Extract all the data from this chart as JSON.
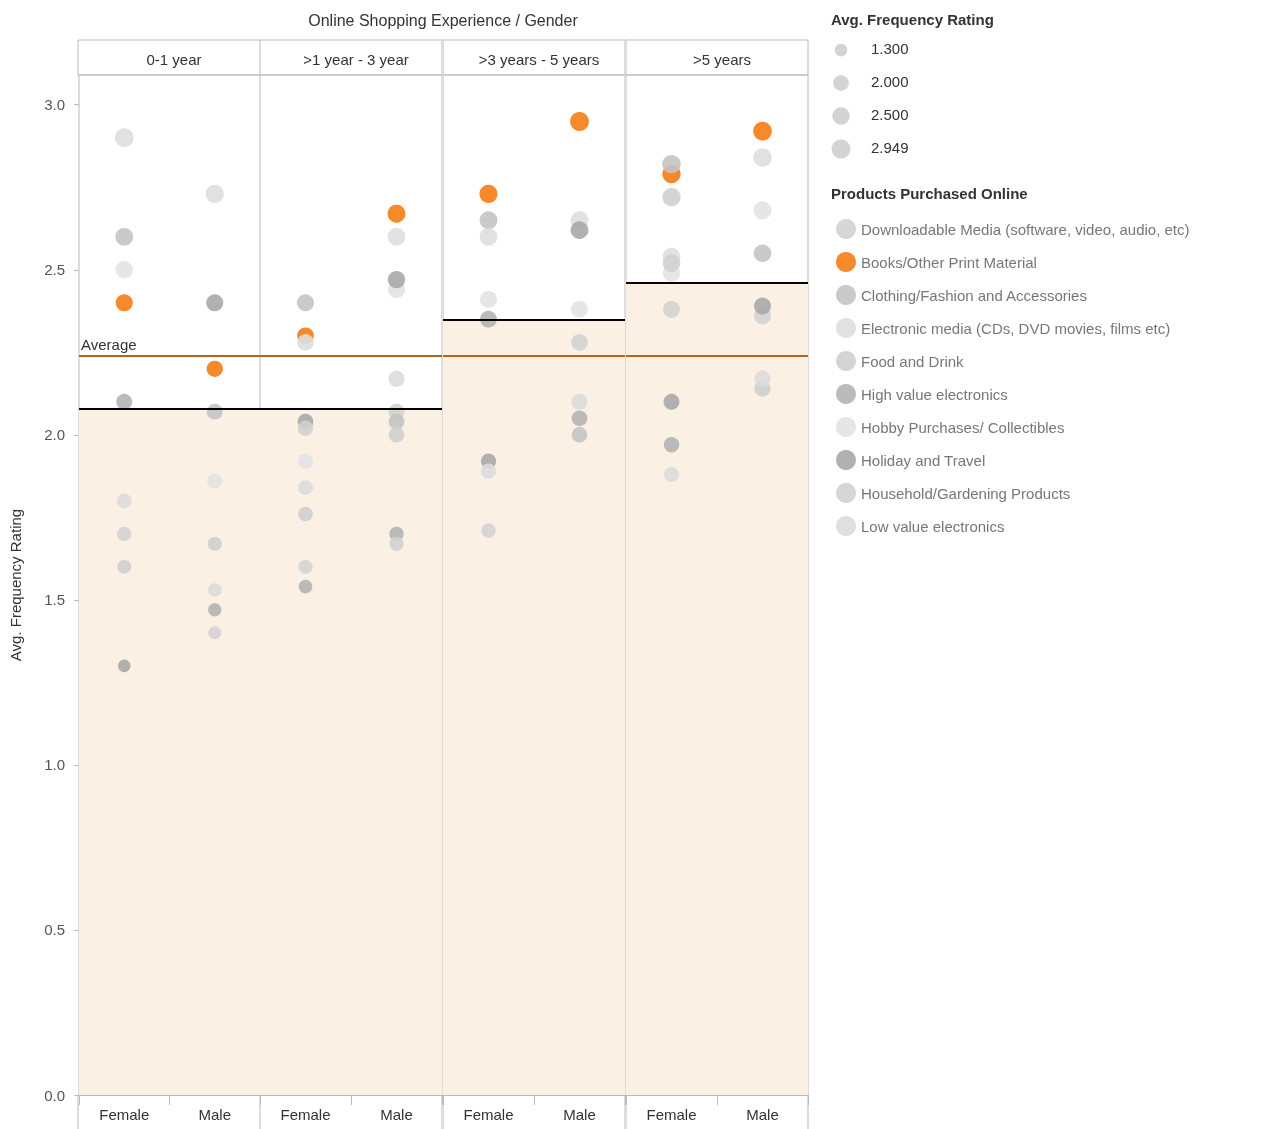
{
  "chart_data": [
    {
      "type": "other",
      "title": "Online Shopping Experience / Gender"
    },
    {
      "type": "scatter",
      "subtitle": "0-1 year",
      "ylabel": "Avg. Frequency Rating",
      "categories": [
        "Female",
        "Male"
      ],
      "ylim": [
        0,
        3.09
      ],
      "yticks": [
        {
          "value": 0,
          "label": "0.0"
        },
        {
          "value": 0.5,
          "label": "0.5"
        },
        {
          "value": 1,
          "label": "1.0"
        },
        {
          "value": 1.5,
          "label": "1.5"
        },
        {
          "value": 2,
          "label": "2.0"
        },
        {
          "value": 2.5,
          "label": "2.5"
        },
        {
          "value": 3,
          "label": "3.0"
        }
      ],
      "bands": [
        {
          "axis": "y",
          "from": 0,
          "to": 2.08,
          "color": "#fbf0e4"
        }
      ],
      "ref_lines": [
        {
          "axis": "y",
          "value": 2.24,
          "label": "Average",
          "color": "#b8651e"
        },
        {
          "axis": "y",
          "value": 2.08,
          "color": "#000000"
        }
      ],
      "series": [
        {
          "color": "#d3d3d3",
          "values": [
            1.7,
            1.4
          ]
        },
        {
          "color": "#f57c14",
          "values": [
            2.4,
            2.2
          ]
        },
        {
          "color": "#c4c4c4",
          "values": [
            2.6,
            2.07
          ]
        },
        {
          "color": "#dedede",
          "values": [
            2.9,
            2.73
          ]
        },
        {
          "color": "#cfcfcf",
          "values": [
            1.6,
            1.67
          ]
        },
        {
          "color": "#b4b4b4",
          "values": [
            2.1,
            1.47
          ]
        },
        {
          "color": "#e3e3e3",
          "values": [
            2.5,
            1.86
          ]
        },
        {
          "color": "#a9a9a9",
          "values": [
            1.3,
            2.4
          ]
        },
        {
          "color": "#d2d2d2",
          "values": [
            null,
            null
          ]
        },
        {
          "color": "#dbdbdb",
          "values": [
            1.8,
            1.53
          ]
        }
      ]
    },
    {
      "type": "scatter",
      "subtitle": ">1 year - 3 year",
      "categories": [
        "Female",
        "Male"
      ],
      "ylim": [
        0,
        3.09
      ],
      "tick_labels": "x",
      "bands": [
        {
          "axis": "y",
          "from": 0,
          "to": 2.08,
          "color": "#fbf0e4"
        }
      ],
      "ref_lines": [
        {
          "axis": "y",
          "value": 2.24,
          "color": "#b8651e"
        },
        {
          "axis": "y",
          "value": 2.08,
          "color": "#000000"
        }
      ],
      "series": [
        {
          "color": "#d3d3d3",
          "values": [
            1.6,
            2.07
          ]
        },
        {
          "color": "#f57c14",
          "values": [
            2.3,
            2.67
          ]
        },
        {
          "color": "#c4c4c4",
          "values": [
            2.4,
            2.04
          ]
        },
        {
          "color": "#dedede",
          "values": [
            2.28,
            2.6
          ]
        },
        {
          "color": "#cfcfcf",
          "values": [
            1.76,
            2.0
          ]
        },
        {
          "color": "#b4b4b4",
          "values": [
            1.54,
            1.7
          ]
        },
        {
          "color": "#e3e3e3",
          "values": [
            1.92,
            2.44
          ]
        },
        {
          "color": "#a9a9a9",
          "values": [
            2.04,
            2.47
          ]
        },
        {
          "color": "#d2d2d2",
          "values": [
            2.02,
            1.67
          ]
        },
        {
          "color": "#dbdbdb",
          "values": [
            1.84,
            2.17
          ]
        }
      ]
    },
    {
      "type": "scatter",
      "subtitle": ">3 years - 5 years",
      "categories": [
        "Female",
        "Male"
      ],
      "ylim": [
        0,
        3.09
      ],
      "tick_labels": "x",
      "bands": [
        {
          "axis": "y",
          "from": 0,
          "to": 2.35,
          "color": "#fbf0e4"
        }
      ],
      "ref_lines": [
        {
          "axis": "y",
          "value": 2.24,
          "color": "#b8651e"
        },
        {
          "axis": "y",
          "value": 2.35,
          "color": "#000000"
        }
      ],
      "series": [
        {
          "color": "#d3d3d3",
          "values": [
            1.71,
            2.28
          ]
        },
        {
          "color": "#f57c14",
          "values": [
            2.73,
            2.949
          ]
        },
        {
          "color": "#c4c4c4",
          "values": [
            2.65,
            2.0
          ]
        },
        {
          "color": "#dedede",
          "values": [
            2.6,
            2.65
          ]
        },
        {
          "color": "#cfcfcf",
          "values": [
            null,
            null
          ]
        },
        {
          "color": "#b4b4b4",
          "values": [
            2.35,
            2.05
          ]
        },
        {
          "color": "#e3e3e3",
          "values": [
            2.41,
            2.38
          ]
        },
        {
          "color": "#a9a9a9",
          "values": [
            1.92,
            2.62
          ]
        },
        {
          "color": "#d2d2d2",
          "values": [
            null,
            null
          ]
        },
        {
          "color": "#dbdbdb",
          "values": [
            1.89,
            2.1
          ]
        }
      ]
    },
    {
      "type": "bubble",
      "subtitle": ">5 years",
      "categories": [
        "Female",
        "Male"
      ],
      "ylim": [
        0,
        3.09
      ],
      "tick_labels": "x",
      "legend": "right",
      "legend_title": "Products Purchased Online",
      "annotations": [
        "Avg. Frequency Rating"
      ],
      "size_legend": [
        {
          "value": 1.3,
          "label": "1.300"
        },
        {
          "value": 2,
          "label": "2.000"
        },
        {
          "value": 2.5,
          "label": "2.500"
        },
        {
          "value": 2.949,
          "label": "2.949"
        }
      ],
      "bands": [
        {
          "axis": "y",
          "from": 0,
          "to": 2.46,
          "color": "#fbf0e4"
        }
      ],
      "ref_lines": [
        {
          "axis": "y",
          "value": 2.24,
          "color": "#b8651e"
        },
        {
          "axis": "y",
          "value": 2.46,
          "color": "#000000"
        }
      ],
      "series": [
        {
          "name": "Downloadable Media (software, video, audio, etc)",
          "color": "#d3d3d3",
          "values": [
            2.38,
            2.36
          ],
          "sizes": [
            2.38,
            2.36
          ]
        },
        {
          "name": "Books/Other Print Material",
          "color": "#f57c14",
          "values": [
            2.79,
            2.92
          ],
          "sizes": [
            2.79,
            2.92
          ]
        },
        {
          "name": "Clothing/Fashion and Accessories",
          "color": "#c4c4c4",
          "values": [
            2.82,
            2.55
          ],
          "sizes": [
            2.82,
            2.55
          ]
        },
        {
          "name": "Electronic media (CDs, DVD movies, films etc)",
          "color": "#dedede",
          "values": [
            2.54,
            2.84
          ],
          "sizes": [
            2.54,
            2.84
          ]
        },
        {
          "name": "Food and Drink",
          "color": "#cfcfcf",
          "values": [
            2.72,
            2.14
          ],
          "sizes": [
            2.72,
            2.14
          ]
        },
        {
          "name": "High value electronics",
          "color": "#b4b4b4",
          "values": [
            1.97,
            null
          ],
          "sizes": [
            1.97,
            null
          ]
        },
        {
          "name": "Hobby Purchases/ Collectibles",
          "color": "#e3e3e3",
          "values": [
            2.49,
            2.68
          ],
          "sizes": [
            2.49,
            2.68
          ]
        },
        {
          "name": "Holiday and Travel",
          "color": "#a9a9a9",
          "values": [
            2.1,
            2.39
          ],
          "sizes": [
            2.1,
            2.39
          ]
        },
        {
          "name": "Household/Gardening Products",
          "color": "#d2d2d2",
          "values": [
            2.52,
            null
          ],
          "sizes": [
            2.52,
            null
          ]
        },
        {
          "name": "Low value electronics",
          "color": "#dbdbdb",
          "values": [
            1.88,
            2.17
          ],
          "sizes": [
            1.88,
            2.17
          ]
        }
      ]
    }
  ]
}
